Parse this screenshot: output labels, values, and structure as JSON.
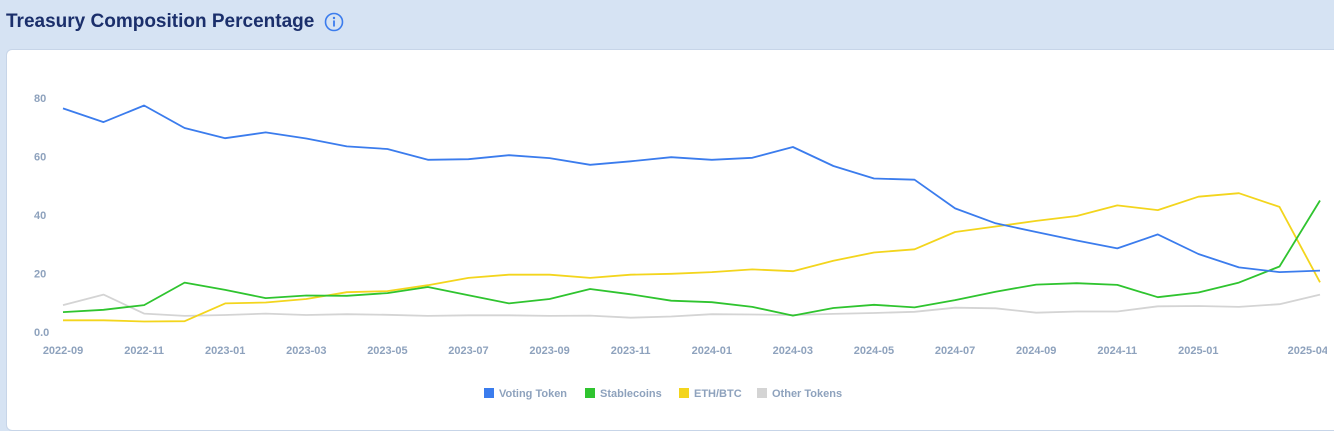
{
  "header": {
    "title": "Treasury Composition Percentage",
    "info_icon": "info-icon"
  },
  "chart_data": {
    "type": "line",
    "title": "Treasury Composition Percentage",
    "xlabel": "",
    "ylabel": "",
    "ylim": [
      0,
      90
    ],
    "y_ticks": [
      "0.0",
      "20",
      "40",
      "60",
      "80"
    ],
    "y_tick_values": [
      0,
      20,
      40,
      60,
      80
    ],
    "x": [
      "2022-09",
      "2022-10",
      "2022-11",
      "2022-12",
      "2023-01",
      "2023-02",
      "2023-03",
      "2023-04",
      "2023-05",
      "2023-06",
      "2023-07",
      "2023-08",
      "2023-09",
      "2023-10",
      "2023-11",
      "2023-12",
      "2024-01",
      "2024-02",
      "2024-03",
      "2024-04",
      "2024-05",
      "2024-06",
      "2024-07",
      "2024-08",
      "2024-09",
      "2024-10",
      "2024-11",
      "2024-12",
      "2025-01",
      "2025-02",
      "2025-03",
      "2025-04"
    ],
    "x_tick_labels": [
      "2022-09",
      "2022-11",
      "2023-01",
      "2023-03",
      "2023-05",
      "2023-07",
      "2023-09",
      "2023-11",
      "2024-01",
      "2024-03",
      "2024-05",
      "2024-07",
      "2024-09",
      "2024-11",
      "2025-01",
      "2025-04"
    ],
    "x_tick_indices": [
      0,
      2,
      4,
      6,
      8,
      10,
      12,
      14,
      16,
      18,
      20,
      22,
      24,
      26,
      28,
      30.7
    ],
    "grid": false,
    "legend_position": "bottom",
    "series": [
      {
        "name": "Voting Token",
        "color": "#3b7ced",
        "values": [
          76.5,
          71.8,
          77.5,
          69.8,
          66.3,
          68.3,
          66.2,
          63.5,
          62.6,
          58.9,
          59.1,
          60.5,
          59.5,
          57.2,
          58.4,
          59.8,
          58.9,
          59.6,
          63.3,
          56.8,
          52.5,
          52.1,
          42.3,
          37.2,
          34.2,
          31.3,
          28.6,
          33.4,
          26.7,
          22.1,
          20.5,
          21.0
        ]
      },
      {
        "name": "Stablecoins",
        "color": "#2fc42f",
        "values": [
          6.8,
          7.6,
          9.2,
          16.9,
          14.4,
          11.6,
          12.5,
          12.4,
          13.3,
          15.4,
          12.6,
          9.8,
          11.3,
          14.7,
          12.9,
          10.7,
          10.2,
          8.6,
          5.6,
          8.2,
          9.3,
          8.4,
          10.9,
          13.8,
          16.2,
          16.7,
          16.1,
          11.9,
          13.5,
          16.9,
          22.4,
          45.0
        ]
      },
      {
        "name": "ETH/BTC",
        "color": "#f3d51d",
        "values": [
          4.0,
          4.0,
          3.6,
          3.7,
          9.8,
          10.1,
          11.3,
          13.6,
          14.0,
          16.0,
          18.5,
          19.6,
          19.6,
          18.5,
          19.6,
          19.9,
          20.5,
          21.4,
          20.8,
          24.4,
          27.2,
          28.3,
          34.2,
          36.1,
          38.0,
          39.7,
          43.3,
          41.7,
          46.3,
          47.5,
          42.8,
          17.0
        ]
      },
      {
        "name": "Other Tokens",
        "color": "#d4d4d4",
        "values": [
          9.2,
          12.8,
          6.3,
          5.5,
          5.8,
          6.3,
          5.8,
          6.1,
          5.9,
          5.5,
          5.7,
          5.7,
          5.5,
          5.6,
          4.9,
          5.3,
          6.1,
          6.0,
          5.8,
          6.2,
          6.5,
          6.9,
          8.3,
          8.1,
          6.6,
          7.0,
          7.0,
          8.8,
          8.9,
          8.6,
          9.5,
          12.8
        ]
      }
    ]
  }
}
